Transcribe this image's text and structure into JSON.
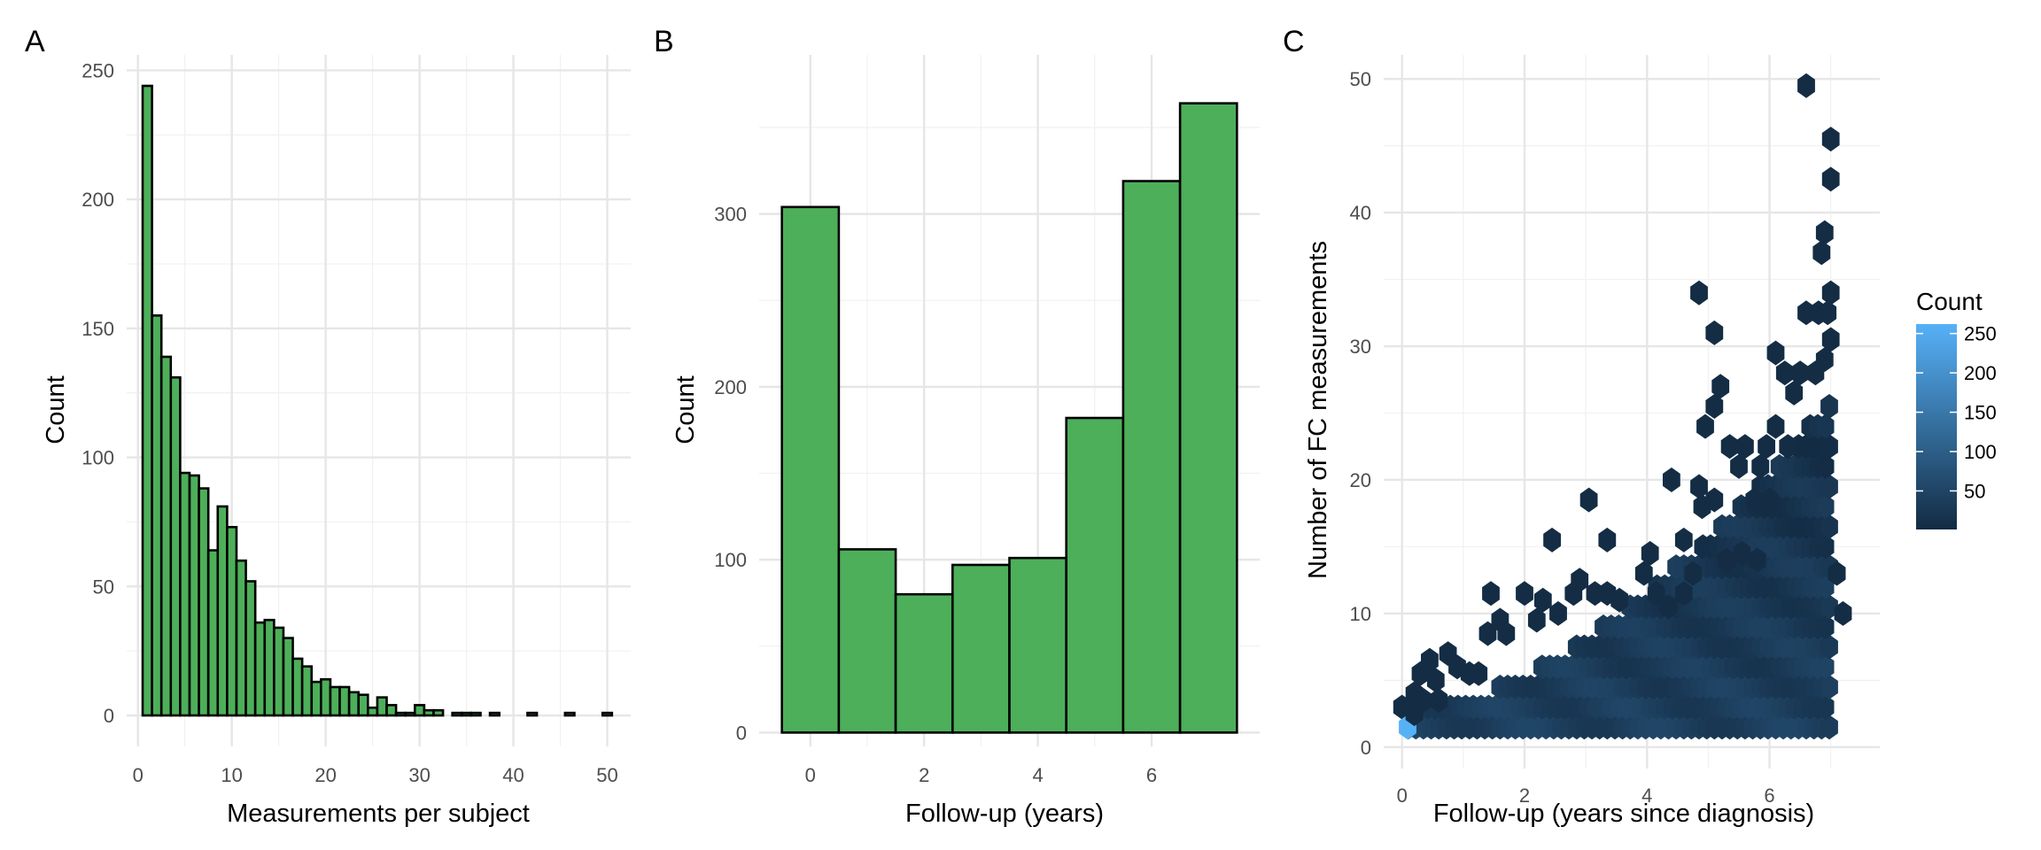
{
  "chart_data": [
    {
      "panel": "A",
      "type": "bar",
      "xlabel": "Measurements per subject",
      "ylabel": "Count",
      "xlim": [
        -1.2,
        52.5
      ],
      "ylim": [
        -12,
        256
      ],
      "xticks": [
        0,
        10,
        20,
        30,
        40,
        50
      ],
      "yticks": [
        0,
        50,
        100,
        150,
        200,
        250
      ],
      "bin_width": 1,
      "fill": "#4daf5a",
      "stroke": "#000000",
      "bins": [
        {
          "x": 1,
          "count": 244
        },
        {
          "x": 2,
          "count": 155
        },
        {
          "x": 3,
          "count": 139
        },
        {
          "x": 4,
          "count": 131
        },
        {
          "x": 5,
          "count": 94
        },
        {
          "x": 6,
          "count": 93
        },
        {
          "x": 7,
          "count": 88
        },
        {
          "x": 8,
          "count": 64
        },
        {
          "x": 9,
          "count": 81
        },
        {
          "x": 10,
          "count": 73
        },
        {
          "x": 11,
          "count": 60
        },
        {
          "x": 12,
          "count": 52
        },
        {
          "x": 13,
          "count": 36
        },
        {
          "x": 14,
          "count": 37
        },
        {
          "x": 15,
          "count": 34
        },
        {
          "x": 16,
          "count": 30
        },
        {
          "x": 17,
          "count": 22
        },
        {
          "x": 18,
          "count": 19
        },
        {
          "x": 19,
          "count": 13
        },
        {
          "x": 20,
          "count": 14
        },
        {
          "x": 21,
          "count": 11
        },
        {
          "x": 22,
          "count": 11
        },
        {
          "x": 23,
          "count": 9
        },
        {
          "x": 24,
          "count": 8
        },
        {
          "x": 25,
          "count": 3
        },
        {
          "x": 26,
          "count": 7
        },
        {
          "x": 27,
          "count": 4
        },
        {
          "x": 28,
          "count": 1
        },
        {
          "x": 29,
          "count": 1
        },
        {
          "x": 30,
          "count": 4
        },
        {
          "x": 31,
          "count": 2
        },
        {
          "x": 32,
          "count": 2
        },
        {
          "x": 34,
          "count": 1
        },
        {
          "x": 35,
          "count": 1
        },
        {
          "x": 36,
          "count": 1
        },
        {
          "x": 38,
          "count": 1
        },
        {
          "x": 42,
          "count": 1
        },
        {
          "x": 46,
          "count": 1
        },
        {
          "x": 50,
          "count": 1
        }
      ]
    },
    {
      "panel": "B",
      "type": "bar",
      "xlabel": "Follow-up (years)",
      "ylabel": "Count",
      "xlim": [
        -0.9,
        7.9
      ],
      "ylim": [
        -8,
        392
      ],
      "xticks": [
        0,
        2,
        4,
        6
      ],
      "yticks": [
        0,
        100,
        200,
        300
      ],
      "bin_width": 1,
      "fill": "#4daf5a",
      "stroke": "#000000",
      "bins": [
        {
          "x": 0,
          "count": 304
        },
        {
          "x": 1,
          "count": 106
        },
        {
          "x": 2,
          "count": 80
        },
        {
          "x": 3,
          "count": 97
        },
        {
          "x": 4,
          "count": 101
        },
        {
          "x": 5,
          "count": 182
        },
        {
          "x": 6,
          "count": 319
        },
        {
          "x": 7,
          "count": 364
        }
      ]
    },
    {
      "panel": "C",
      "type": "heatmap",
      "subtype": "hexbin",
      "xlabel": "Follow-up (years since diagnosis)",
      "ylabel": "Number of FC measurements",
      "xlim": [
        -0.3,
        7.8
      ],
      "ylim": [
        -1.6,
        51.8
      ],
      "xticks": [
        0,
        2,
        4,
        6
      ],
      "yticks": [
        0,
        10,
        20,
        30,
        40,
        50
      ],
      "color_low": "#132b43",
      "color_high": "#56b1f7",
      "legend": {
        "title": "Count",
        "ticks": [
          50,
          100,
          150,
          200,
          250
        ],
        "min": 1,
        "max": 262,
        "position": "right"
      },
      "dense_region": {
        "x_start": 0.1,
        "x_end": 7.0,
        "y_min": 1.5,
        "y_max_at_start": 3,
        "y_max_at_end": 26
      },
      "extra_cells": [
        [
          0.0,
          3
        ],
        [
          0.09,
          1.5,
          262
        ],
        [
          6.6,
          49.5
        ],
        [
          7.0,
          45.5
        ],
        [
          7.0,
          42.5
        ],
        [
          6.9,
          38.5
        ],
        [
          6.85,
          37
        ],
        [
          7.0,
          34
        ],
        [
          6.8,
          32.5
        ],
        [
          6.95,
          32.5
        ],
        [
          6.6,
          32.5
        ],
        [
          7.0,
          30.5
        ],
        [
          6.9,
          29
        ],
        [
          6.1,
          29.5
        ],
        [
          6.25,
          28
        ],
        [
          6.5,
          28
        ],
        [
          6.75,
          28
        ],
        [
          6.4,
          26.5
        ],
        [
          4.85,
          34
        ],
        [
          5.1,
          31
        ],
        [
          5.2,
          27
        ],
        [
          5.1,
          25.5
        ],
        [
          4.95,
          24
        ],
        [
          5.35,
          22.5
        ],
        [
          5.6,
          22.5
        ],
        [
          5.5,
          21
        ],
        [
          5.85,
          21
        ],
        [
          6.1,
          24
        ],
        [
          5.95,
          22.5
        ],
        [
          6.3,
          22.5
        ],
        [
          4.85,
          19.5
        ],
        [
          5.1,
          18.5
        ],
        [
          4.9,
          18
        ],
        [
          4.4,
          20
        ],
        [
          5.75,
          18.5
        ],
        [
          6.0,
          18.5
        ],
        [
          3.05,
          18.5
        ],
        [
          4.05,
          14.5
        ],
        [
          3.95,
          13
        ],
        [
          2.45,
          15.5
        ],
        [
          3.35,
          15.5
        ],
        [
          1.45,
          11.5
        ],
        [
          2.0,
          11.5
        ],
        [
          1.6,
          9.5
        ],
        [
          2.2,
          9.5
        ],
        [
          1.4,
          8.5
        ],
        [
          1.7,
          8.5
        ],
        [
          0.3,
          5.5
        ],
        [
          0.45,
          6.5
        ],
        [
          0.55,
          5
        ],
        [
          0.75,
          7
        ],
        [
          0.9,
          6
        ],
        [
          1.1,
          5.5
        ],
        [
          1.25,
          5.5
        ],
        [
          0.2,
          4
        ],
        [
          0.35,
          3.5
        ],
        [
          0.6,
          3.5
        ],
        [
          0.2,
          2.5
        ],
        [
          2.3,
          11
        ],
        [
          2.55,
          10
        ],
        [
          2.8,
          11.5
        ],
        [
          2.9,
          12.5
        ],
        [
          3.15,
          11.5
        ],
        [
          3.35,
          11.5
        ],
        [
          3.55,
          11
        ],
        [
          4.15,
          11.5
        ],
        [
          4.35,
          10.5
        ],
        [
          4.6,
          11.5
        ],
        [
          4.75,
          13
        ],
        [
          4.6,
          15.5
        ],
        [
          5.3,
          14
        ],
        [
          5.55,
          14.5
        ],
        [
          5.8,
          14
        ],
        [
          7.1,
          13
        ],
        [
          7.2,
          10
        ]
      ]
    }
  ]
}
